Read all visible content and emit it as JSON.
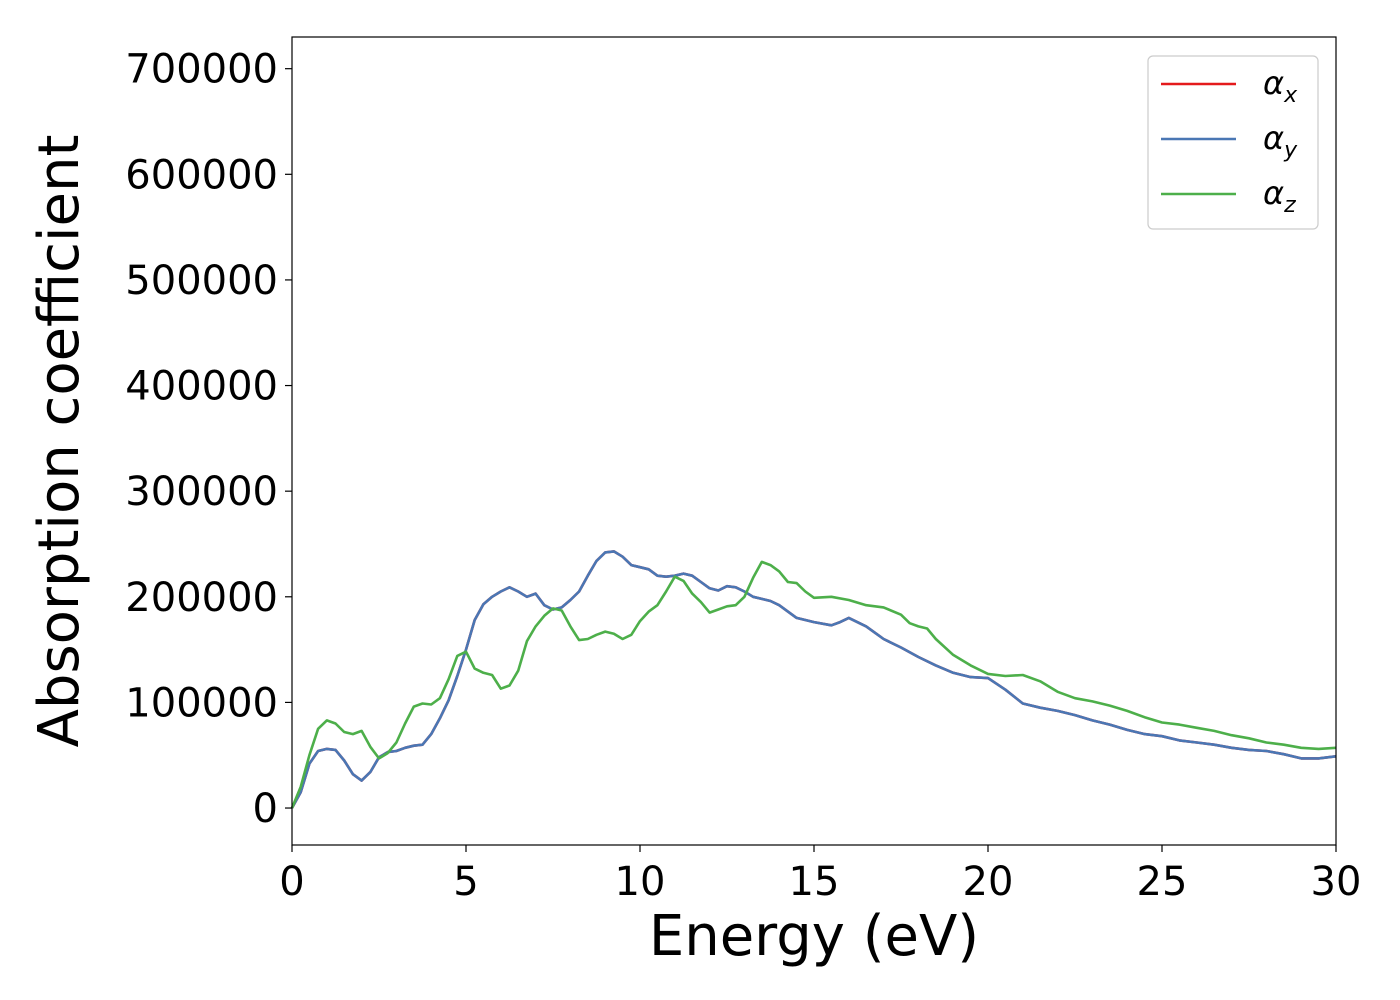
{
  "chart_data": {
    "type": "line",
    "title": "",
    "xlabel": "Energy (eV)",
    "ylabel": "Absorption coefficient",
    "xlim": [
      0,
      30
    ],
    "ylim": [
      -35000,
      730000
    ],
    "xticks": [
      0,
      5,
      10,
      15,
      20,
      25,
      30
    ],
    "yticks": [
      0,
      100000,
      200000,
      300000,
      400000,
      500000,
      600000,
      700000
    ],
    "grid": false,
    "legend_position": "top-right",
    "series": [
      {
        "name": "α",
        "subscript": "x",
        "color": "#e41a1c",
        "points": [
          [
            0,
            0
          ],
          [
            0.25,
            15000
          ],
          [
            0.5,
            42000
          ],
          [
            0.75,
            54000
          ],
          [
            1.0,
            56000
          ],
          [
            1.25,
            55000
          ],
          [
            1.5,
            45000
          ],
          [
            1.75,
            32000
          ],
          [
            2.0,
            26000
          ],
          [
            2.25,
            34000
          ],
          [
            2.5,
            48000
          ],
          [
            2.75,
            53000
          ],
          [
            3.0,
            54000
          ],
          [
            3.25,
            57000
          ],
          [
            3.5,
            59000
          ],
          [
            3.75,
            60000
          ],
          [
            4.0,
            70000
          ],
          [
            4.25,
            85000
          ],
          [
            4.5,
            102000
          ],
          [
            4.75,
            125000
          ],
          [
            5.0,
            150000
          ],
          [
            5.25,
            178000
          ],
          [
            5.5,
            193000
          ],
          [
            5.75,
            200000
          ],
          [
            6.0,
            205000
          ],
          [
            6.25,
            209000
          ],
          [
            6.5,
            205000
          ],
          [
            6.75,
            200000
          ],
          [
            7.0,
            203000
          ],
          [
            7.25,
            192000
          ],
          [
            7.5,
            188000
          ],
          [
            7.75,
            190000
          ],
          [
            8.0,
            197000
          ],
          [
            8.25,
            205000
          ],
          [
            8.5,
            220000
          ],
          [
            8.75,
            234000
          ],
          [
            9.0,
            242000
          ],
          [
            9.25,
            243000
          ],
          [
            9.5,
            238000
          ],
          [
            9.75,
            230000
          ],
          [
            10.0,
            228000
          ],
          [
            10.25,
            226000
          ],
          [
            10.5,
            220000
          ],
          [
            10.75,
            219000
          ],
          [
            11.0,
            220000
          ],
          [
            11.25,
            222000
          ],
          [
            11.5,
            220000
          ],
          [
            11.75,
            214000
          ],
          [
            12.0,
            208000
          ],
          [
            12.25,
            206000
          ],
          [
            12.5,
            210000
          ],
          [
            12.75,
            209000
          ],
          [
            13.0,
            205000
          ],
          [
            13.25,
            200000
          ],
          [
            13.5,
            198000
          ],
          [
            13.75,
            196000
          ],
          [
            14.0,
            192000
          ],
          [
            14.5,
            180000
          ],
          [
            15.0,
            176000
          ],
          [
            15.5,
            173000
          ],
          [
            15.75,
            176000
          ],
          [
            16.0,
            180000
          ],
          [
            16.5,
            172000
          ],
          [
            17.0,
            160000
          ],
          [
            17.5,
            152000
          ],
          [
            18.0,
            143000
          ],
          [
            18.5,
            135000
          ],
          [
            19.0,
            128000
          ],
          [
            19.5,
            124000
          ],
          [
            20.0,
            123000
          ],
          [
            20.5,
            112000
          ],
          [
            21.0,
            99000
          ],
          [
            21.5,
            95000
          ],
          [
            22.0,
            92000
          ],
          [
            22.5,
            88000
          ],
          [
            23.0,
            83000
          ],
          [
            23.5,
            79000
          ],
          [
            24.0,
            74000
          ],
          [
            24.5,
            70000
          ],
          [
            25.0,
            68000
          ],
          [
            25.5,
            64000
          ],
          [
            26.0,
            62000
          ],
          [
            26.5,
            60000
          ],
          [
            27.0,
            57000
          ],
          [
            27.5,
            55000
          ],
          [
            28.0,
            54000
          ],
          [
            28.5,
            51000
          ],
          [
            29.0,
            47000
          ],
          [
            29.5,
            47000
          ],
          [
            30.0,
            49000
          ]
        ]
      },
      {
        "name": "α",
        "subscript": "y",
        "color": "#4a77b4",
        "points": [
          [
            0,
            0
          ],
          [
            0.25,
            15000
          ],
          [
            0.5,
            42000
          ],
          [
            0.75,
            54000
          ],
          [
            1.0,
            56000
          ],
          [
            1.25,
            55000
          ],
          [
            1.5,
            45000
          ],
          [
            1.75,
            32000
          ],
          [
            2.0,
            26000
          ],
          [
            2.25,
            34000
          ],
          [
            2.5,
            48000
          ],
          [
            2.75,
            53000
          ],
          [
            3.0,
            54000
          ],
          [
            3.25,
            57000
          ],
          [
            3.5,
            59000
          ],
          [
            3.75,
            60000
          ],
          [
            4.0,
            70000
          ],
          [
            4.25,
            85000
          ],
          [
            4.5,
            102000
          ],
          [
            4.75,
            125000
          ],
          [
            5.0,
            150000
          ],
          [
            5.25,
            178000
          ],
          [
            5.5,
            193000
          ],
          [
            5.75,
            200000
          ],
          [
            6.0,
            205000
          ],
          [
            6.25,
            209000
          ],
          [
            6.5,
            205000
          ],
          [
            6.75,
            200000
          ],
          [
            7.0,
            203000
          ],
          [
            7.25,
            192000
          ],
          [
            7.5,
            188000
          ],
          [
            7.75,
            190000
          ],
          [
            8.0,
            197000
          ],
          [
            8.25,
            205000
          ],
          [
            8.5,
            220000
          ],
          [
            8.75,
            234000
          ],
          [
            9.0,
            242000
          ],
          [
            9.25,
            243000
          ],
          [
            9.5,
            238000
          ],
          [
            9.75,
            230000
          ],
          [
            10.0,
            228000
          ],
          [
            10.25,
            226000
          ],
          [
            10.5,
            220000
          ],
          [
            10.75,
            219000
          ],
          [
            11.0,
            220000
          ],
          [
            11.25,
            222000
          ],
          [
            11.5,
            220000
          ],
          [
            11.75,
            214000
          ],
          [
            12.0,
            208000
          ],
          [
            12.25,
            206000
          ],
          [
            12.5,
            210000
          ],
          [
            12.75,
            209000
          ],
          [
            13.0,
            205000
          ],
          [
            13.25,
            200000
          ],
          [
            13.5,
            198000
          ],
          [
            13.75,
            196000
          ],
          [
            14.0,
            192000
          ],
          [
            14.5,
            180000
          ],
          [
            15.0,
            176000
          ],
          [
            15.5,
            173000
          ],
          [
            15.75,
            176000
          ],
          [
            16.0,
            180000
          ],
          [
            16.5,
            172000
          ],
          [
            17.0,
            160000
          ],
          [
            17.5,
            152000
          ],
          [
            18.0,
            143000
          ],
          [
            18.5,
            135000
          ],
          [
            19.0,
            128000
          ],
          [
            19.5,
            124000
          ],
          [
            20.0,
            123000
          ],
          [
            20.5,
            112000
          ],
          [
            21.0,
            99000
          ],
          [
            21.5,
            95000
          ],
          [
            22.0,
            92000
          ],
          [
            22.5,
            88000
          ],
          [
            23.0,
            83000
          ],
          [
            23.5,
            79000
          ],
          [
            24.0,
            74000
          ],
          [
            24.5,
            70000
          ],
          [
            25.0,
            68000
          ],
          [
            25.5,
            64000
          ],
          [
            26.0,
            62000
          ],
          [
            26.5,
            60000
          ],
          [
            27.0,
            57000
          ],
          [
            27.5,
            55000
          ],
          [
            28.0,
            54000
          ],
          [
            28.5,
            51000
          ],
          [
            29.0,
            47000
          ],
          [
            29.5,
            47000
          ],
          [
            30.0,
            49000
          ]
        ]
      },
      {
        "name": "α",
        "subscript": "z",
        "color": "#4daf4a",
        "points": [
          [
            0,
            0
          ],
          [
            0.25,
            20000
          ],
          [
            0.5,
            50000
          ],
          [
            0.75,
            75000
          ],
          [
            1.0,
            83000
          ],
          [
            1.25,
            80000
          ],
          [
            1.5,
            72000
          ],
          [
            1.75,
            70000
          ],
          [
            2.0,
            73000
          ],
          [
            2.25,
            58000
          ],
          [
            2.5,
            47000
          ],
          [
            2.75,
            52000
          ],
          [
            3.0,
            62000
          ],
          [
            3.25,
            80000
          ],
          [
            3.5,
            96000
          ],
          [
            3.75,
            99000
          ],
          [
            4.0,
            98000
          ],
          [
            4.25,
            104000
          ],
          [
            4.5,
            122000
          ],
          [
            4.75,
            144000
          ],
          [
            5.0,
            148000
          ],
          [
            5.25,
            132000
          ],
          [
            5.5,
            128000
          ],
          [
            5.75,
            126000
          ],
          [
            6.0,
            113000
          ],
          [
            6.25,
            116000
          ],
          [
            6.5,
            130000
          ],
          [
            6.75,
            158000
          ],
          [
            7.0,
            172000
          ],
          [
            7.25,
            182000
          ],
          [
            7.5,
            189000
          ],
          [
            7.75,
            187000
          ],
          [
            8.0,
            172000
          ],
          [
            8.25,
            159000
          ],
          [
            8.5,
            160000
          ],
          [
            8.75,
            164000
          ],
          [
            9.0,
            167000
          ],
          [
            9.25,
            165000
          ],
          [
            9.5,
            160000
          ],
          [
            9.75,
            164000
          ],
          [
            10.0,
            177000
          ],
          [
            10.25,
            186000
          ],
          [
            10.5,
            192000
          ],
          [
            10.75,
            205000
          ],
          [
            11.0,
            219000
          ],
          [
            11.25,
            215000
          ],
          [
            11.5,
            203000
          ],
          [
            11.75,
            195000
          ],
          [
            12.0,
            185000
          ],
          [
            12.25,
            188000
          ],
          [
            12.5,
            191000
          ],
          [
            12.75,
            192000
          ],
          [
            13.0,
            200000
          ],
          [
            13.25,
            218000
          ],
          [
            13.5,
            233000
          ],
          [
            13.75,
            230000
          ],
          [
            14.0,
            224000
          ],
          [
            14.25,
            214000
          ],
          [
            14.5,
            213000
          ],
          [
            14.75,
            205000
          ],
          [
            15.0,
            199000
          ],
          [
            15.5,
            200000
          ],
          [
            16.0,
            197000
          ],
          [
            16.5,
            192000
          ],
          [
            17.0,
            190000
          ],
          [
            17.5,
            183000
          ],
          [
            17.75,
            175000
          ],
          [
            18.0,
            172000
          ],
          [
            18.25,
            170000
          ],
          [
            18.5,
            160000
          ],
          [
            19.0,
            145000
          ],
          [
            19.5,
            135000
          ],
          [
            20.0,
            127000
          ],
          [
            20.5,
            125000
          ],
          [
            21.0,
            126000
          ],
          [
            21.5,
            120000
          ],
          [
            22.0,
            110000
          ],
          [
            22.5,
            104000
          ],
          [
            23.0,
            101000
          ],
          [
            23.5,
            97000
          ],
          [
            24.0,
            92000
          ],
          [
            24.5,
            86000
          ],
          [
            25.0,
            81000
          ],
          [
            25.5,
            79000
          ],
          [
            26.0,
            76000
          ],
          [
            26.5,
            73000
          ],
          [
            27.0,
            69000
          ],
          [
            27.5,
            66000
          ],
          [
            28.0,
            62000
          ],
          [
            28.5,
            60000
          ],
          [
            29.0,
            57000
          ],
          [
            29.5,
            56000
          ],
          [
            30.0,
            57000
          ]
        ]
      }
    ]
  }
}
